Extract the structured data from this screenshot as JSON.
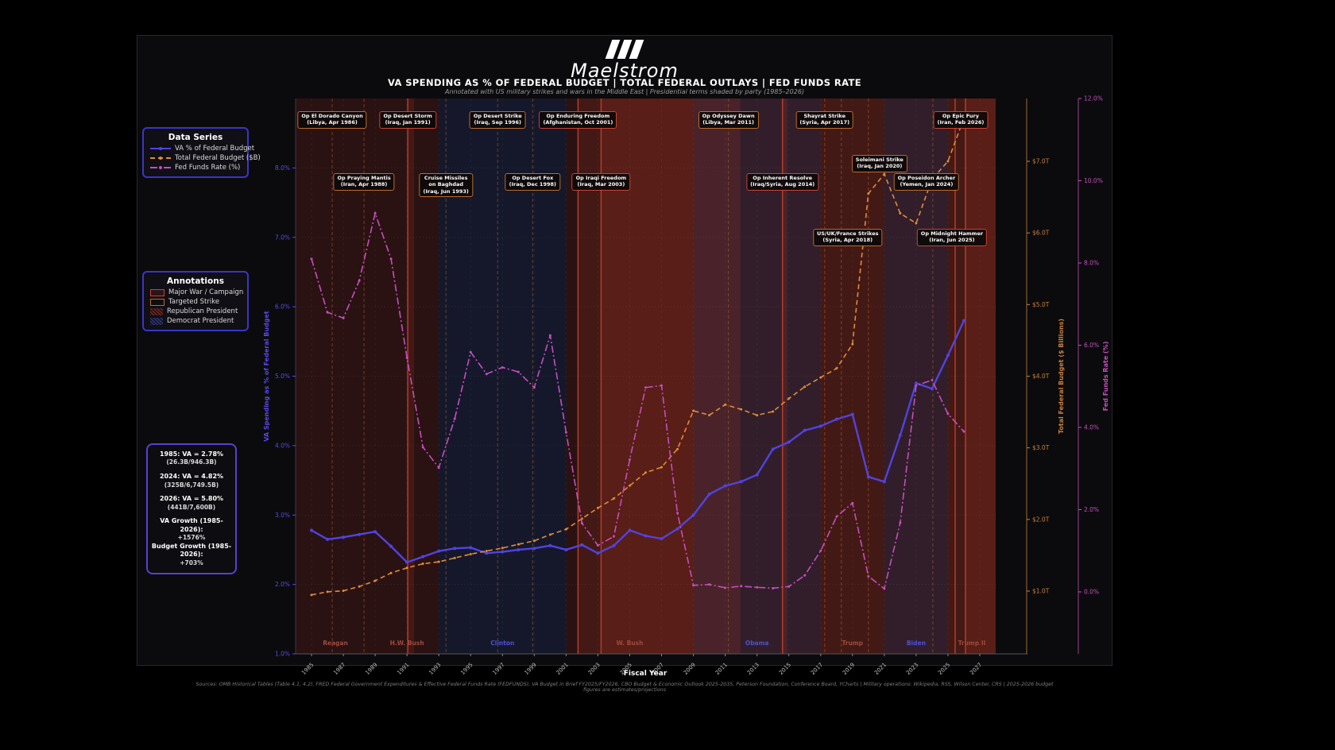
{
  "brand": {
    "logo_text": "Maelstrom"
  },
  "header": {
    "title": "VA SPENDING AS % OF FEDERAL BUDGET  |  TOTAL FEDERAL OUTLAYS  |  FED FUNDS RATE",
    "subtitle": "Annotated with US military strikes and wars in the Middle East  |  Presidential terms shaded by party  (1985–2026)"
  },
  "legend_series": {
    "title": "Data Series",
    "items": [
      {
        "label": "VA % of Federal Budget",
        "color": "#5143e0",
        "style": "solid"
      },
      {
        "label": "Total Federal Budget ($B)",
        "color": "#e08b3d",
        "style": "dashed"
      },
      {
        "label": "Fed Funds Rate (%)",
        "color": "#c44fbe",
        "style": "dashdot"
      }
    ]
  },
  "legend_annotations": {
    "title": "Annotations",
    "items": [
      {
        "label": "Major War / Campaign",
        "type": "war"
      },
      {
        "label": "Targeted Strike",
        "type": "strike"
      },
      {
        "label": "Republican President",
        "type": "rep"
      },
      {
        "label": "Democrat President",
        "type": "dem"
      }
    ]
  },
  "stats_box": {
    "groups": [
      {
        "main": "1985: VA = 2.78%",
        "sub": "(26.3B/946.3B)",
        "tight": false
      },
      {
        "main": "2024: VA = 4.82%",
        "sub": "(325B/6,749.5B)",
        "tight": false
      },
      {
        "main": "2026: VA = 5.80%",
        "sub": "(441B/7,600B)",
        "tight": false
      },
      {
        "main": "VA Growth (1985-2026):",
        "sub": "+1576%",
        "tight": true
      },
      {
        "main": "Budget Growth (1985-2026):",
        "sub": "+703%",
        "tight": true
      }
    ]
  },
  "axes": {
    "x_title": "Fiscal Year",
    "va_title": "VA Spending as % of Federal Budget",
    "budget_title": "Total Federal Budget ($ Billions)",
    "fed_title": "Fed Funds Rate (%)",
    "va_tick_values": [
      1,
      2,
      3,
      4,
      5,
      6,
      7,
      8
    ],
    "va_tick_labels": [
      "1.0%",
      "2.0%",
      "3.0%",
      "4.0%",
      "5.0%",
      "6.0%",
      "7.0%",
      "8.0%"
    ],
    "budget_tick_values": [
      1,
      2,
      3,
      4,
      5,
      6,
      7
    ],
    "budget_tick_labels": [
      "$1.0T",
      "$2.0T",
      "$3.0T",
      "$4.0T",
      "$5.0T",
      "$6.0T",
      "$7.0T"
    ],
    "fed_tick_values": [
      0,
      2,
      4,
      6,
      8,
      10,
      12
    ],
    "fed_tick_labels": [
      "0.0%",
      "2.0%",
      "4.0%",
      "6.0%",
      "8.0%",
      "10.0%",
      "12.0%"
    ],
    "x_tick_years": [
      1985,
      1987,
      1989,
      1991,
      1993,
      1995,
      1997,
      1999,
      2001,
      2003,
      2005,
      2007,
      2009,
      2011,
      2013,
      2015,
      2017,
      2019,
      2021,
      2023,
      2025,
      2027
    ]
  },
  "chart_data": {
    "type": "line",
    "x_years": [
      1985,
      1986,
      1987,
      1988,
      1989,
      1990,
      1991,
      1992,
      1993,
      1994,
      1995,
      1996,
      1997,
      1998,
      1999,
      2000,
      2001,
      2002,
      2003,
      2004,
      2005,
      2006,
      2007,
      2008,
      2009,
      2010,
      2011,
      2012,
      2013,
      2014,
      2015,
      2016,
      2017,
      2018,
      2019,
      2020,
      2021,
      2022,
      2023,
      2024,
      2025,
      2026
    ],
    "series": [
      {
        "name": "VA % of Federal Budget",
        "axis": "va",
        "color": "#5143e0",
        "style": "solid",
        "values": [
          2.78,
          2.65,
          2.68,
          2.72,
          2.76,
          2.55,
          2.32,
          2.4,
          2.48,
          2.52,
          2.53,
          2.45,
          2.47,
          2.5,
          2.52,
          2.56,
          2.5,
          2.57,
          2.45,
          2.56,
          2.78,
          2.7,
          2.66,
          2.8,
          3.0,
          3.3,
          3.42,
          3.48,
          3.58,
          3.95,
          4.05,
          4.22,
          4.28,
          4.38,
          4.45,
          3.55,
          3.48,
          4.15,
          4.9,
          4.82,
          5.3,
          5.8
        ]
      },
      {
        "name": "Total Federal Budget ($B)",
        "axis": "budget",
        "color": "#e08b3d",
        "style": "dashed",
        "values": [
          946.3,
          990,
          1004,
          1064,
          1144,
          1253,
          1324,
          1382,
          1409,
          1462,
          1516,
          1560,
          1601,
          1653,
          1702,
          1789,
          1863,
          2011,
          2160,
          2293,
          2472,
          2655,
          2729,
          2983,
          3518,
          3457,
          3603,
          3537,
          3455,
          3506,
          3688,
          3853,
          3982,
          4109,
          4447,
          6550,
          6822,
          6273,
          6135,
          6749.5,
          7000,
          7600
        ]
      },
      {
        "name": "Fed Funds Rate (%)",
        "axis": "fed",
        "color": "#c44fbe",
        "style": "dashdot",
        "values": [
          8.1,
          6.8,
          6.66,
          7.57,
          9.21,
          8.1,
          5.69,
          3.52,
          3.02,
          4.21,
          5.83,
          5.3,
          5.46,
          5.35,
          4.97,
          6.24,
          3.88,
          1.67,
          1.13,
          1.35,
          3.22,
          4.97,
          5.02,
          1.92,
          0.16,
          0.18,
          0.1,
          0.14,
          0.11,
          0.09,
          0.13,
          0.4,
          1.0,
          1.83,
          2.16,
          0.38,
          0.08,
          1.68,
          5.02,
          5.15,
          4.33,
          3.9
        ]
      }
    ],
    "axis_ranges": {
      "va": [
        1,
        9
      ],
      "budget_trillions": [
        1,
        7
      ],
      "fed": [
        0,
        12
      ],
      "x": [
        1984,
        2028
      ]
    },
    "presidents": [
      {
        "name": "Reagan",
        "start": 1984,
        "end": 1989,
        "party": "R"
      },
      {
        "name": "H.W. Bush",
        "start": 1989,
        "end": 1993,
        "party": "R"
      },
      {
        "name": "Clinton",
        "start": 1993,
        "end": 2001,
        "party": "D"
      },
      {
        "name": "W. Bush",
        "start": 2001,
        "end": 2009,
        "party": "R"
      },
      {
        "name": "Obama",
        "start": 2009,
        "end": 2017,
        "party": "D"
      },
      {
        "name": "Trump",
        "start": 2017,
        "end": 2021,
        "party": "R"
      },
      {
        "name": "Biden",
        "start": 2021,
        "end": 2025,
        "party": "D"
      },
      {
        "name": "Trump II",
        "start": 2025,
        "end": 2028,
        "party": "R"
      }
    ],
    "war_bands": [
      {
        "name": "Desert Storm",
        "start": 1991.05,
        "end": 1991.45
      },
      {
        "name": "Enduring Freedom",
        "start": 2001.75,
        "end": 2014.9
      },
      {
        "name": "Iraqi Freedom",
        "start": 2003.2,
        "end": 2011.95
      },
      {
        "name": "Inherent Resolve",
        "start": 2014.6,
        "end": 2028
      },
      {
        "name": "Epic Fury",
        "start": 2026.1,
        "end": 2028
      }
    ],
    "war_lines": [
      1991.05,
      2001.75,
      2003.2,
      2014.6,
      2025.45,
      2026.1
    ],
    "strike_lines": [
      1986.3,
      1988.3,
      1993.45,
      1996.7,
      1998.9,
      2011.2,
      2017.25,
      2018.3,
      2020.0,
      2024.05
    ],
    "annotations": [
      {
        "lines": [
          "Op El Dorado Canyon",
          "(Libya, Apr 1986)"
        ],
        "type": "strike",
        "year": 1986.3,
        "row": 1,
        "dx": 0
      },
      {
        "lines": [
          "Op Desert Storm",
          "(Iraq, Jan 1991)"
        ],
        "type": "war",
        "year": 1991.05,
        "row": 1,
        "dx": 0
      },
      {
        "lines": [
          "Op Desert Strike",
          "(Iraq, Sep 1996)"
        ],
        "type": "strike",
        "year": 1996.7,
        "row": 1,
        "dx": 0
      },
      {
        "lines": [
          "Op Enduring Freedom",
          "(Afghanistan, Oct 2001)"
        ],
        "type": "war",
        "year": 2001.75,
        "row": 1,
        "dx": 0
      },
      {
        "lines": [
          "Op Odyssey Dawn",
          "(Libya, Mar 2011)"
        ],
        "type": "strike",
        "year": 2011.2,
        "row": 1,
        "dx": 0
      },
      {
        "lines": [
          "Shayrat Strike",
          "(Syria, Apr 2017)"
        ],
        "type": "strike",
        "year": 2017.25,
        "row": 1,
        "dx": 0
      },
      {
        "lines": [
          "Op Epic Fury",
          "(Iran, Feb 2026)"
        ],
        "type": "war",
        "year": 2026.1,
        "row": 1,
        "dx": -6
      },
      {
        "lines": [
          "Op Praying Mantis",
          "(Iran, Apr 1988)"
        ],
        "type": "strike",
        "year": 1988.3,
        "row": 2,
        "dx": 0
      },
      {
        "lines": [
          "Cruise Missiles",
          "on Baghdad",
          "(Iraq, Jun 1993)"
        ],
        "type": "strike",
        "year": 1993.45,
        "row": 2,
        "dx": 0
      },
      {
        "lines": [
          "Op Desert Fox",
          "(Iraq, Dec 1998)"
        ],
        "type": "strike",
        "year": 1998.9,
        "row": 2,
        "dx": 0
      },
      {
        "lines": [
          "Op Iraqi Freedom",
          "(Iraq, Mar 2003)"
        ],
        "type": "war",
        "year": 2003.2,
        "row": 2,
        "dx": 0
      },
      {
        "lines": [
          "Op Inherent Resolve",
          "(Iraq/Syria, Aug 2014)"
        ],
        "type": "war",
        "year": 2014.6,
        "row": 2,
        "dx": 0
      },
      {
        "lines": [
          "Soleimani Strike",
          "(Iraq, Jan 2020)"
        ],
        "type": "strike",
        "year": 2020.0,
        "row": 1.5,
        "dx": 14
      },
      {
        "lines": [
          "Op Poseidon Archer",
          "(Yemen, Jan 2024)"
        ],
        "type": "strike",
        "year": 2024.05,
        "row": 2,
        "dx": -8
      },
      {
        "lines": [
          "US/UK/France Strikes",
          "(Syria, Apr 2018)"
        ],
        "type": "strike",
        "year": 2018.3,
        "row": 3,
        "dx": 8
      },
      {
        "lines": [
          "Op Midnight Hammer",
          "(Iran, Jun 2025)"
        ],
        "type": "war",
        "year": 2025.45,
        "row": 3,
        "dx": -4
      }
    ]
  },
  "colors": {
    "va_axis": "#5a49e8",
    "budget_axis": "#c8803f",
    "fed_axis": "#c44fbe",
    "war_line": "#c3402e",
    "strike_line": "#b96a33",
    "rep_band": "rgba(165,45,35,0.20)",
    "dem_band": "rgba(75,95,200,0.15)",
    "war_band": "rgba(200,60,35,0.16)",
    "rep_label": "#9e4a3c",
    "dem_label": "#4f4fd8"
  },
  "footer": {
    "x_axis_label": "Fiscal Year",
    "sources": "Sources: OMB Historical Tables (Table 4.1, 4.2), FRED Federal Government Expenditures & Effective Federal Funds Rate (FEDFUNDS), VA Budget in Brief FY2025/FY2026, CBO Budget & Economic Outlook 2025-2035, Peterson Foundation, Conference Board, YCharts  |  Military operations: Wikipedia, RSS, Wilson Center, CRS  |  2025-2026 budget figures are estimates/projections"
  }
}
